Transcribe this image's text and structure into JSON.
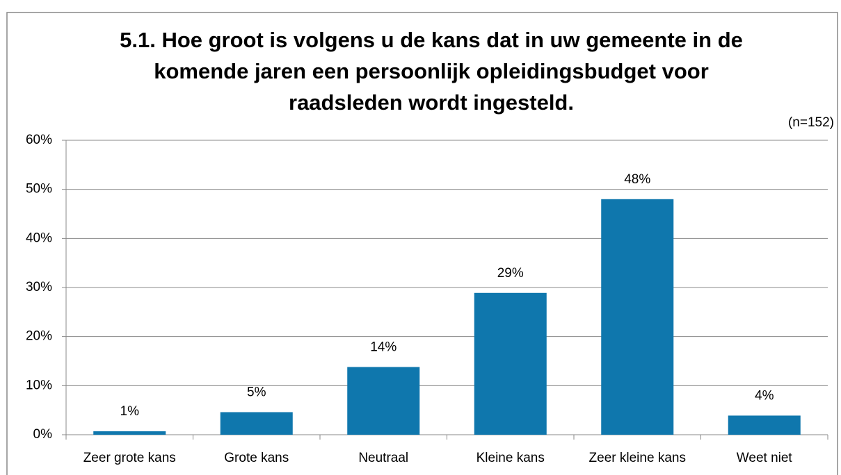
{
  "chart_data": {
    "type": "bar",
    "title": [
      "5.1. Hoe groot is volgens u de kans dat in uw gemeente in de",
      "komende jaren een persoonlijk opleidingsbudget voor",
      "raadsleden wordt ingesteld."
    ],
    "subtitle": "(n=152)",
    "categories": [
      "Zeer grote kans",
      "Grote kans",
      "Neutraal",
      "Kleine kans",
      "Zeer kleine kans",
      "Weet niet"
    ],
    "values": [
      0.7,
      4.6,
      13.8,
      28.9,
      48,
      3.9
    ],
    "value_labels": [
      "1%",
      "5%",
      "14%",
      "29%",
      "48%",
      "4%"
    ],
    "color": "#0f77ad",
    "ylim": [
      0,
      60
    ],
    "yticks": [
      {
        "value": 0,
        "label": "0%"
      },
      {
        "value": 10,
        "label": "10%"
      },
      {
        "value": 20,
        "label": "20%"
      },
      {
        "value": 30,
        "label": "30%"
      },
      {
        "value": 40,
        "label": "40%"
      },
      {
        "value": 50,
        "label": "50%"
      },
      {
        "value": 60,
        "label": "60%"
      }
    ],
    "grid": true
  }
}
